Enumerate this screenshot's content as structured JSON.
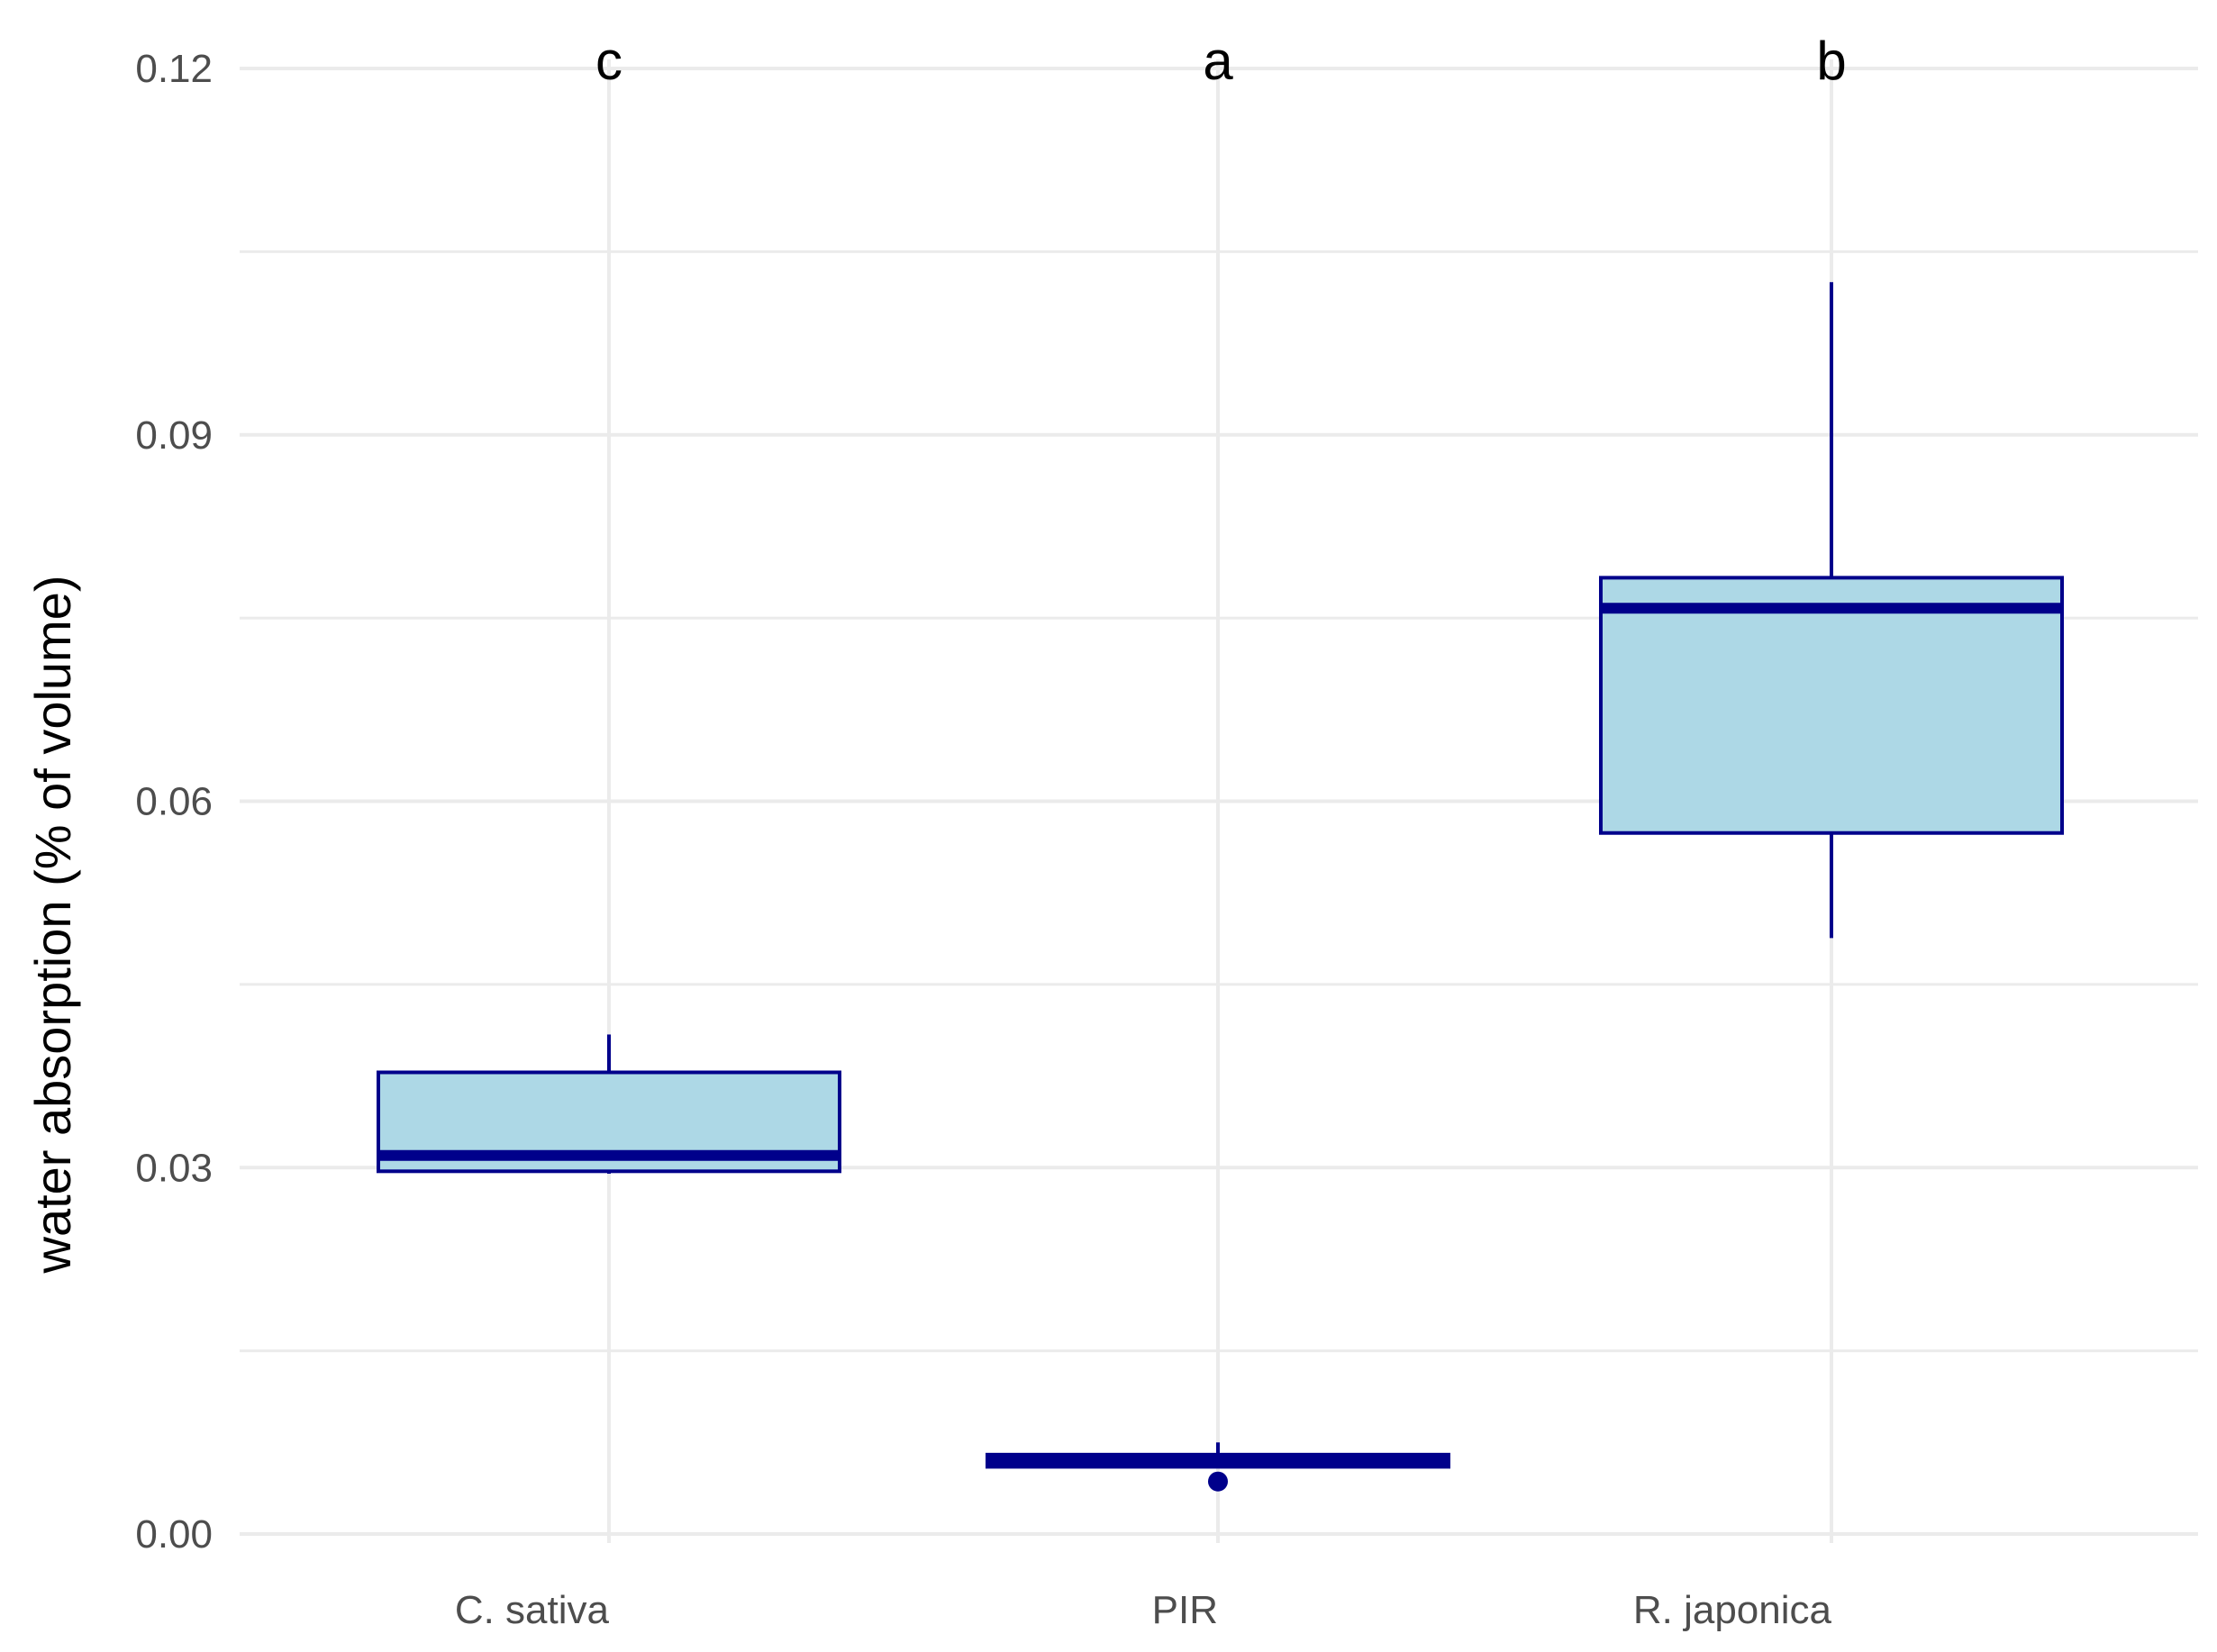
{
  "chart_data": {
    "type": "boxplot",
    "title": "",
    "xlabel": "",
    "ylabel": "water absorption (% of volume)",
    "ylim": [
      0,
      0.12
    ],
    "y_ticks": [
      0.0,
      0.03,
      0.06,
      0.09,
      0.12
    ],
    "y_tick_labels": [
      "0.00",
      "0.03",
      "0.06",
      "0.09",
      "0.12"
    ],
    "grid": true,
    "legend": "none",
    "colors": {
      "fill": "#add8e6",
      "stroke": "#00008b",
      "grid": "#ebebeb"
    },
    "categories": [
      "C. sativa",
      "PIR",
      "R. japonica"
    ],
    "boxes": [
      {
        "category": "C. sativa",
        "min": 0.0295,
        "q1": 0.0297,
        "median": 0.031,
        "q3": 0.0378,
        "max": 0.0409,
        "outliers": [],
        "letter": "c"
      },
      {
        "category": "PIR",
        "min": 0.0055,
        "q1": 0.0055,
        "median": 0.006,
        "q3": 0.0065,
        "max": 0.0075,
        "outliers": [
          0.0043
        ],
        "letter": "a"
      },
      {
        "category": "R. japonica",
        "min": 0.0488,
        "q1": 0.0574,
        "median": 0.0758,
        "q3": 0.0783,
        "max": 0.1025,
        "outliers": [],
        "letter": "b"
      }
    ]
  }
}
